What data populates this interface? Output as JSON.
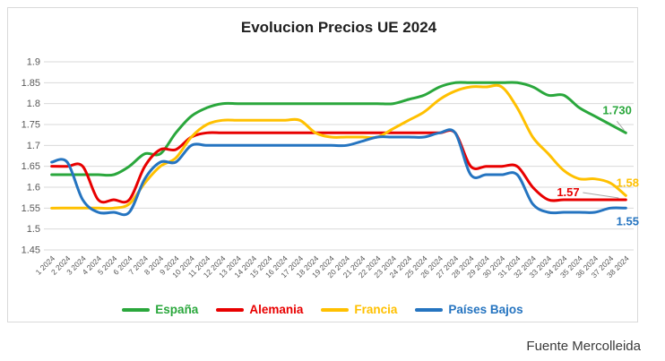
{
  "source": "Fuente Mercolleida",
  "colors": {
    "grid": "#d9d9d9",
    "axis_text": "#595959",
    "leader_line": "#a6a6a6",
    "title_text": "#1f1f1f",
    "espana_green": "#2aa73c",
    "alemania_red": "#e80000",
    "francia_yellow": "#ffc000",
    "paises_bajos_blue": "#2574c0"
  },
  "chart_data": {
    "type": "line",
    "title": "Evolucion Precios UE 2024",
    "xlabel": "",
    "ylabel": "",
    "ylim": [
      1.45,
      1.9
    ],
    "grid": true,
    "smoothed": true,
    "legend_position": "bottom",
    "y_ticks": [
      "1.9",
      "1.85",
      "1.8",
      "1.75",
      "1.7",
      "1.65",
      "1.6",
      "1.55",
      "1.5",
      "1.45"
    ],
    "categories": [
      "1 2024",
      "2 2024",
      "3 2024",
      "4 2024",
      "5 2024",
      "6 2024",
      "7 2024",
      "8 2024",
      "9 2024",
      "10 2024",
      "11 2024",
      "12 2024",
      "13 2024",
      "14 2024",
      "15 2024",
      "16 2024",
      "17 2024",
      "18 2024",
      "19 2024",
      "20 2024",
      "21 2024",
      "22 2024",
      "23 2024",
      "24 2024",
      "25 2024",
      "26 2024",
      "27 2024",
      "28 2024",
      "29 2024",
      "30 2024",
      "31 2024",
      "32 2024",
      "33 2024",
      "34 2024",
      "35 2024",
      "36 2024",
      "37 2024",
      "38 2024"
    ],
    "series": [
      {
        "name": "España",
        "color": "#2aa73c",
        "end_label": "1.730",
        "values": [
          1.63,
          1.63,
          1.63,
          1.63,
          1.63,
          1.65,
          1.68,
          1.68,
          1.73,
          1.77,
          1.79,
          1.8,
          1.8,
          1.8,
          1.8,
          1.8,
          1.8,
          1.8,
          1.8,
          1.8,
          1.8,
          1.8,
          1.8,
          1.81,
          1.82,
          1.84,
          1.85,
          1.85,
          1.85,
          1.85,
          1.85,
          1.84,
          1.82,
          1.82,
          1.79,
          1.77,
          1.75,
          1.73
        ]
      },
      {
        "name": "Alemania",
        "color": "#e80000",
        "end_label": "1.57",
        "values": [
          1.65,
          1.65,
          1.65,
          1.57,
          1.57,
          1.57,
          1.65,
          1.69,
          1.69,
          1.72,
          1.73,
          1.73,
          1.73,
          1.73,
          1.73,
          1.73,
          1.73,
          1.73,
          1.73,
          1.73,
          1.73,
          1.73,
          1.73,
          1.73,
          1.73,
          1.73,
          1.73,
          1.65,
          1.65,
          1.65,
          1.65,
          1.6,
          1.57,
          1.57,
          1.57,
          1.57,
          1.57,
          1.57
        ]
      },
      {
        "name": "Francia",
        "color": "#ffc000",
        "end_label": "1.58",
        "values": [
          1.55,
          1.55,
          1.55,
          1.55,
          1.55,
          1.56,
          1.61,
          1.65,
          1.67,
          1.72,
          1.75,
          1.76,
          1.76,
          1.76,
          1.76,
          1.76,
          1.76,
          1.73,
          1.72,
          1.72,
          1.72,
          1.72,
          1.74,
          1.76,
          1.78,
          1.81,
          1.83,
          1.84,
          1.84,
          1.84,
          1.79,
          1.72,
          1.68,
          1.64,
          1.62,
          1.62,
          1.61,
          1.58
        ]
      },
      {
        "name": "Países Bajos",
        "color": "#2574c0",
        "end_label": "1.55",
        "values": [
          1.66,
          1.66,
          1.57,
          1.54,
          1.54,
          1.54,
          1.62,
          1.66,
          1.66,
          1.7,
          1.7,
          1.7,
          1.7,
          1.7,
          1.7,
          1.7,
          1.7,
          1.7,
          1.7,
          1.7,
          1.71,
          1.72,
          1.72,
          1.72,
          1.72,
          1.73,
          1.73,
          1.63,
          1.63,
          1.63,
          1.63,
          1.56,
          1.54,
          1.54,
          1.54,
          1.54,
          1.55,
          1.55
        ]
      }
    ]
  }
}
